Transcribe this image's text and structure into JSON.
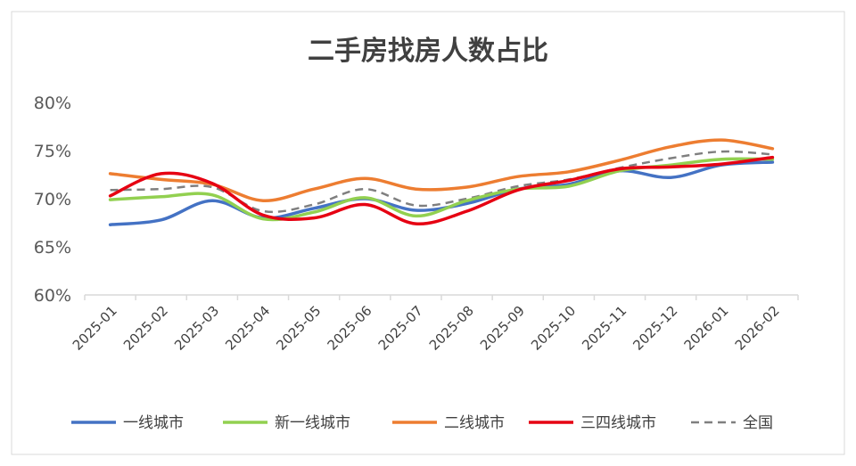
{
  "chart_data": {
    "type": "line",
    "title": "二手房找房人数占比",
    "categories": [
      "2025-01",
      "2025-02",
      "2025-03",
      "2025-04",
      "2025-05",
      "2025-06",
      "2025-07",
      "2025-08",
      "2025-09",
      "2025-10",
      "2025-11",
      "2025-12",
      "2026-01",
      "2026-02"
    ],
    "y_ticks": [
      "60%",
      "65%",
      "70%",
      "75%",
      "80%"
    ],
    "ylim": [
      60,
      80
    ],
    "grid": false,
    "legend_position": "bottom",
    "series": [
      {
        "name": "一线城市",
        "color": "#4472C4",
        "dashed": false,
        "values": [
          67.3,
          67.8,
          69.8,
          68.0,
          69.0,
          70.0,
          68.8,
          69.5,
          71.0,
          71.5,
          72.9,
          72.2,
          73.5,
          73.8
        ]
      },
      {
        "name": "新一线城市",
        "color": "#92D050",
        "dashed": false,
        "values": [
          69.9,
          70.2,
          70.4,
          67.9,
          68.6,
          70.1,
          68.2,
          69.8,
          71.0,
          71.3,
          72.9,
          73.5,
          74.1,
          74.1
        ]
      },
      {
        "name": "二线城市",
        "color": "#ED7D31",
        "dashed": false,
        "values": [
          72.6,
          72.0,
          71.5,
          69.8,
          71.0,
          72.1,
          71.0,
          71.2,
          72.3,
          72.8,
          74.0,
          75.4,
          76.1,
          75.2
        ]
      },
      {
        "name": "三四线城市",
        "color": "#E60012",
        "dashed": false,
        "values": [
          70.3,
          72.6,
          71.6,
          68.3,
          68.0,
          69.4,
          67.4,
          68.7,
          70.9,
          71.9,
          73.1,
          73.3,
          73.6,
          74.3
        ]
      },
      {
        "name": "全国",
        "color": "#7F7F7F",
        "dashed": true,
        "values": [
          70.9,
          71.0,
          71.2,
          68.7,
          69.4,
          71.0,
          69.3,
          70.0,
          71.3,
          72.0,
          73.2,
          74.2,
          74.9,
          74.6
        ]
      }
    ]
  }
}
